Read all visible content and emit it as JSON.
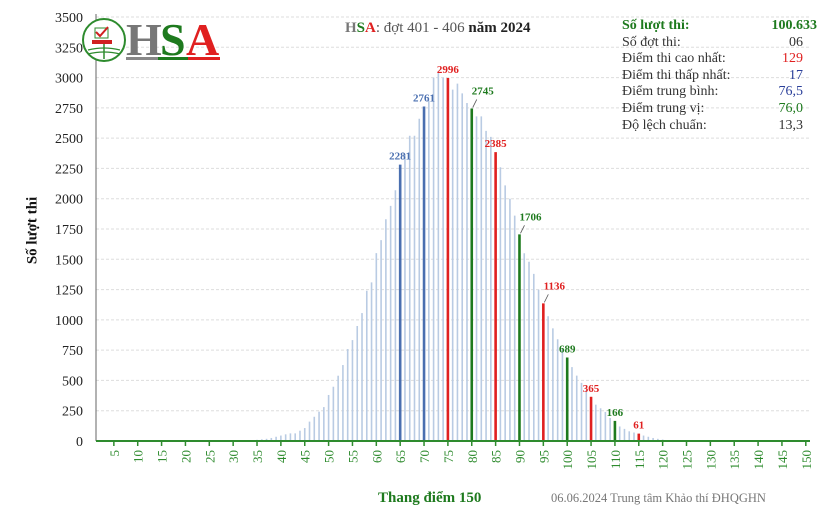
{
  "logo": {
    "text": "HSA",
    "colors": {
      "H": "#777777",
      "S": "#1e7a1e",
      "A": "#e02020"
    }
  },
  "title": {
    "prefix_h": "H",
    "prefix_s": "S",
    "prefix_a": "A",
    "middle": ": đợt 401 - 406 ",
    "year_word": "năm",
    "year": "2024"
  },
  "stats": [
    {
      "label": "Số lượt thi:",
      "value": "100.633",
      "color": "#1e7a1e"
    },
    {
      "label": "Số đợt thi:",
      "value": "06",
      "color": "#333333"
    },
    {
      "label": "Điểm thi cao nhất:",
      "value": "129",
      "color": "#e02020"
    },
    {
      "label": "Điểm thi thấp nhất:",
      "value": "17",
      "color": "#2a3f9a"
    },
    {
      "label": "Điểm trung bình:",
      "value": "76,5",
      "color": "#2a3f9a"
    },
    {
      "label": "Điểm trung vị:",
      "value": "76,0",
      "color": "#1e7a1e"
    },
    {
      "label": "Độ lệch chuẩn:",
      "value": "13,3",
      "color": "#333333"
    }
  ],
  "credit": "06.06.2024 Trung tâm Khảo thí ĐHQGHN",
  "chart_data": {
    "type": "bar",
    "xlabel": "Thang điểm 150",
    "ylabel": "Số lượt thi",
    "ylim": [
      0,
      3500
    ],
    "xlim": [
      0,
      150
    ],
    "yticks": [
      0,
      250,
      500,
      750,
      1000,
      1250,
      1500,
      1750,
      2000,
      2250,
      2500,
      2750,
      3000,
      3250,
      3500
    ],
    "xticks": [
      5,
      10,
      15,
      20,
      25,
      30,
      35,
      40,
      45,
      50,
      55,
      60,
      65,
      70,
      75,
      80,
      85,
      90,
      95,
      100,
      105,
      110,
      115,
      120,
      125,
      130,
      135,
      140,
      145,
      150
    ],
    "grid": true,
    "colors": {
      "bar": "#b9cbe3",
      "blue": "#4a6fb0",
      "red": "#e02020",
      "green": "#1e7a1e",
      "axis": "#2e8b2e"
    },
    "x": [
      17,
      18,
      19,
      20,
      21,
      22,
      23,
      24,
      25,
      26,
      27,
      28,
      29,
      30,
      31,
      32,
      33,
      34,
      35,
      36,
      37,
      38,
      39,
      40,
      41,
      42,
      43,
      44,
      45,
      46,
      47,
      48,
      49,
      50,
      51,
      52,
      53,
      54,
      55,
      56,
      57,
      58,
      59,
      60,
      61,
      62,
      63,
      64,
      65,
      66,
      67,
      68,
      69,
      70,
      71,
      72,
      73,
      74,
      75,
      76,
      77,
      78,
      79,
      80,
      81,
      82,
      83,
      84,
      85,
      86,
      87,
      88,
      89,
      90,
      91,
      92,
      93,
      94,
      95,
      96,
      97,
      98,
      99,
      100,
      101,
      102,
      103,
      104,
      105,
      106,
      107,
      108,
      109,
      110,
      111,
      112,
      113,
      114,
      115,
      116,
      117,
      118,
      119,
      120,
      121,
      122,
      123,
      124,
      125,
      126,
      127,
      128,
      129
    ],
    "values": [
      1,
      1,
      1,
      1,
      2,
      1,
      2,
      2,
      2,
      3,
      2,
      3,
      3,
      3,
      4,
      5,
      6,
      8,
      10,
      14,
      18,
      25,
      35,
      45,
      55,
      63,
      63,
      85,
      107,
      160,
      200,
      242,
      280,
      380,
      448,
      539,
      627,
      759,
      833,
      949,
      1056,
      1240,
      1309,
      1551,
      1658,
      1830,
      1941,
      2070,
      2281,
      2370,
      2520,
      2520,
      2660,
      2761,
      2810,
      3000,
      3050,
      3000,
      2996,
      2900,
      2950,
      2870,
      2790,
      2745,
      2680,
      2680,
      2560,
      2510,
      2385,
      2260,
      2110,
      2000,
      1860,
      1706,
      1550,
      1480,
      1380,
      1250,
      1136,
      1030,
      930,
      840,
      760,
      689,
      610,
      540,
      480,
      420,
      365,
      300,
      270,
      240,
      190,
      166,
      120,
      100,
      80,
      70,
      61,
      45,
      35,
      25,
      18,
      12,
      8,
      5,
      4,
      3,
      2,
      1,
      1,
      0,
      1
    ],
    "highlighted": [
      {
        "x": 65,
        "value": 2281,
        "label": "2281",
        "color": "blue"
      },
      {
        "x": 70,
        "value": 2761,
        "label": "2761",
        "color": "blue"
      },
      {
        "x": 75,
        "value": 2996,
        "label": "2996",
        "color": "red"
      },
      {
        "x": 80,
        "value": 2745,
        "label": "2745",
        "color": "green"
      },
      {
        "x": 85,
        "value": 2385,
        "label": "2385",
        "color": "red"
      },
      {
        "x": 90,
        "value": 1706,
        "label": "1706",
        "color": "green"
      },
      {
        "x": 95,
        "value": 1136,
        "label": "1136",
        "color": "red"
      },
      {
        "x": 100,
        "value": 689,
        "label": "689",
        "color": "green"
      },
      {
        "x": 105,
        "value": 365,
        "label": "365",
        "color": "red"
      },
      {
        "x": 110,
        "value": 166,
        "label": "166",
        "color": "green"
      },
      {
        "x": 115,
        "value": 61,
        "label": "61",
        "color": "red"
      }
    ]
  }
}
